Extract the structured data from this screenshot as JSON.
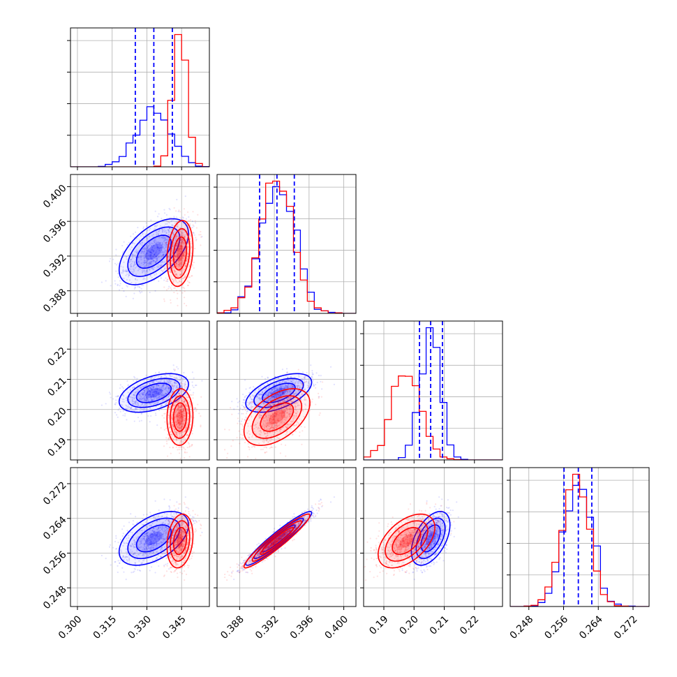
{
  "chart_data": {
    "type": "corner",
    "grid": true,
    "parameters": [
      {
        "range": [
          0.297,
          0.357
        ],
        "ticks": [
          0.3,
          0.315,
          0.33,
          0.345
        ],
        "tick_labels": [
          "0.300",
          "0.315",
          "0.330",
          "0.345"
        ]
      },
      {
        "range": [
          0.3854,
          0.4014
        ],
        "ticks": [
          0.388,
          0.392,
          0.396,
          0.4
        ],
        "tick_labels": [
          "0.388",
          "0.392",
          "0.396",
          "0.400"
        ]
      },
      {
        "range": [
          0.1833,
          0.2293
        ],
        "ticks": [
          0.19,
          0.2,
          0.21,
          0.22
        ],
        "tick_labels": [
          "0.19",
          "0.20",
          "0.21",
          "0.22"
        ]
      },
      {
        "range": [
          0.2437,
          0.2757
        ],
        "ticks": [
          0.248,
          0.256,
          0.264,
          0.272
        ],
        "tick_labels": [
          "0.248",
          "0.256",
          "0.264",
          "0.272"
        ]
      }
    ],
    "series": [
      {
        "color": "#0000ff",
        "mean": [
          0.333,
          0.3925,
          0.2055,
          0.2594
        ],
        "std": [
          0.0075,
          0.0019,
          0.0032,
          0.0031
        ],
        "corr": [
          [
            1,
            0.55,
            0.45,
            0.5
          ],
          [
            0.55,
            1,
            0.55,
            0.95
          ],
          [
            0.45,
            0.55,
            1,
            0.5
          ],
          [
            0.5,
            0.95,
            0.5,
            1
          ]
        ],
        "quantiles": [
          [
            0.325,
            0.333,
            0.341
          ],
          [
            0.3903,
            0.3923,
            0.3943
          ],
          [
            0.2018,
            0.2055,
            0.2094
          ],
          [
            0.2561,
            0.2594,
            0.2625
          ]
        ]
      },
      {
        "color": "#ff0000",
        "mean": [
          0.3443,
          0.3923,
          0.1975,
          0.2588
        ],
        "std": [
          0.0028,
          0.0019,
          0.0047,
          0.0031
        ],
        "corr": [
          [
            1,
            0.2,
            0.05,
            0.2
          ],
          [
            0.2,
            1,
            0.5,
            0.95
          ],
          [
            0.05,
            0.5,
            1,
            0.5
          ],
          [
            0.2,
            0.95,
            0.5,
            1
          ]
        ]
      }
    ]
  }
}
